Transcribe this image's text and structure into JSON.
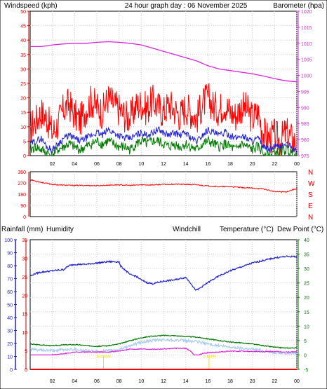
{
  "colors": {
    "wind": "#ff0000",
    "gust_avg": "#2222cc",
    "wind_low": "#007700",
    "baro": "#dd22dd",
    "title": "#ffdd00",
    "axis_red": "#cc0000",
    "grid": "#cccccc",
    "humidity": "#2222cc",
    "windchill": "#aaccee",
    "temp": "#007700",
    "dewpoint": "#dd22dd",
    "rain": "#ff0000",
    "sunline": "#ffdd00",
    "frame": "#000000"
  },
  "chart_data": [
    {
      "type": "line",
      "title": "24 hour graph day : 06 November 2025",
      "ylabel": "Windspeed (kph)",
      "y2label": "Barometer (hpa)",
      "ylim": [
        0,
        50
      ],
      "y2lim": [
        975,
        1020
      ],
      "yticks": [
        "0",
        "5",
        "10",
        "15",
        "20",
        "25",
        "30",
        "35",
        "40",
        "45",
        "50"
      ],
      "y2ticks": [
        "975",
        "980",
        "985",
        "990",
        "995",
        "1000",
        "1005",
        "1010",
        "1015",
        "1020"
      ],
      "xticks": [
        "02",
        "04",
        "06",
        "08",
        "10",
        "12",
        "14",
        "16",
        "18",
        "20",
        "22",
        "00"
      ],
      "series": [
        {
          "key": "wind",
          "x": [
            0,
            0.5,
            1,
            1.5,
            2,
            2.5,
            3,
            3.5,
            4,
            4.5,
            5,
            5.5,
            6,
            6.5,
            7,
            7.5,
            8,
            8.5,
            9,
            9.5,
            10,
            10.5,
            11,
            11.5,
            12,
            12.5,
            13,
            13.5,
            14,
            14.5,
            15,
            15.5,
            16,
            16.5,
            17,
            17.5,
            18,
            18.5,
            19,
            19.5,
            20,
            20.5,
            21,
            21.5,
            22,
            22.5,
            23,
            23.5,
            24
          ],
          "y": [
            10,
            12,
            15,
            13,
            8,
            11,
            16,
            18,
            14,
            12,
            16,
            19,
            17,
            15,
            20,
            18,
            16,
            14,
            13,
            17,
            18,
            16,
            19,
            17,
            15,
            18,
            16,
            14,
            17,
            15,
            13,
            18,
            20,
            17,
            16,
            18,
            15,
            14,
            17,
            16,
            13,
            15,
            8,
            6,
            7,
            5,
            8,
            6,
            4
          ]
        },
        {
          "key": "gust_avg",
          "x": [
            0,
            0.5,
            1,
            1.5,
            2,
            2.5,
            3,
            3.5,
            4,
            4.5,
            5,
            5.5,
            6,
            6.5,
            7,
            7.5,
            8,
            8.5,
            9,
            9.5,
            10,
            10.5,
            11,
            11.5,
            12,
            12.5,
            13,
            13.5,
            14,
            14.5,
            15,
            15.5,
            16,
            16.5,
            17,
            17.5,
            18,
            18.5,
            19,
            19.5,
            20,
            20.5,
            21,
            21.5,
            22,
            22.5,
            23,
            23.5,
            24
          ],
          "y": [
            4,
            5,
            6,
            3,
            2,
            4,
            6,
            7,
            6,
            5,
            6,
            7,
            8,
            7,
            9,
            8,
            7,
            6,
            6,
            7,
            8,
            7,
            8,
            9,
            8,
            7,
            8,
            7,
            8,
            6,
            5,
            7,
            9,
            8,
            7,
            8,
            7,
            6,
            7,
            6,
            5,
            6,
            3,
            2,
            3,
            3,
            4,
            3,
            1
          ]
        },
        {
          "key": "wind_low",
          "x": [
            0,
            0.5,
            1,
            1.5,
            2,
            2.5,
            3,
            3.5,
            4,
            4.5,
            5,
            5.5,
            6,
            6.5,
            7,
            7.5,
            8,
            8.5,
            9,
            9.5,
            10,
            10.5,
            11,
            11.5,
            12,
            12.5,
            13,
            13.5,
            14,
            14.5,
            15,
            15.5,
            16,
            16.5,
            17,
            17.5,
            18,
            18.5,
            19,
            19.5,
            20,
            20.5,
            21,
            21.5,
            22,
            22.5,
            23,
            23.5,
            24
          ],
          "y": [
            2,
            3,
            2,
            1,
            0,
            2,
            3,
            4,
            3,
            2,
            3,
            4,
            5,
            4,
            5,
            4,
            3,
            3,
            2,
            4,
            5,
            4,
            5,
            5,
            4,
            3,
            4,
            3,
            4,
            3,
            2,
            4,
            5,
            4,
            3,
            4,
            3,
            2,
            4,
            3,
            2,
            3,
            1,
            0,
            1,
            1,
            2,
            1,
            0
          ]
        },
        {
          "key": "baro",
          "axis": "y2",
          "x": [
            0,
            1,
            2,
            3,
            4,
            5,
            6,
            7,
            8,
            9,
            10,
            11,
            12,
            13,
            14,
            15,
            16,
            17,
            18,
            19,
            20,
            21,
            22,
            23,
            24
          ],
          "y": [
            1009,
            1009,
            1009.5,
            1009.8,
            1010,
            1010,
            1010.3,
            1010.5,
            1010.3,
            1010,
            1009.5,
            1008.5,
            1007.5,
            1006.5,
            1005.5,
            1004.5,
            1003,
            1002,
            1001.5,
            1001,
            1000.5,
            999.8,
            999,
            998.3,
            998
          ]
        }
      ]
    },
    {
      "type": "line",
      "ylabel_letters": [
        "N",
        "W",
        "S",
        "E",
        "N"
      ],
      "ylim": [
        0,
        360
      ],
      "yticks": [
        "0",
        "90",
        "180",
        "270",
        "360"
      ],
      "series": [
        {
          "key": "wind",
          "x": [
            0,
            1,
            2,
            3,
            4,
            5,
            6,
            7,
            8,
            9,
            10,
            11,
            12,
            13,
            14,
            15,
            16,
            17,
            18,
            19,
            20,
            21,
            22,
            23,
            24
          ],
          "y": [
            295,
            275,
            258,
            252,
            250,
            250,
            248,
            252,
            255,
            250,
            255,
            254,
            258,
            260,
            258,
            255,
            246,
            240,
            240,
            233,
            228,
            222,
            200,
            198,
            225
          ]
        }
      ]
    },
    {
      "type": "line",
      "labels": {
        "rain": "Rainfall (mm)",
        "humidity": "Humidity",
        "windchill": "Windchill",
        "temp": "Temperature (°C)",
        "dewpoint": "Dew Point (°C)"
      },
      "hum_lim": [
        0,
        100
      ],
      "rain_lim": [
        0,
        35
      ],
      "temp_lim": [
        -5,
        40
      ],
      "hum_ticks": [
        "0",
        "10",
        "20",
        "30",
        "40",
        "50",
        "60",
        "70",
        "80",
        "90",
        "100"
      ],
      "rain_ticks": [
        "0",
        "5",
        "10",
        "15",
        "20",
        "25",
        "30",
        "35"
      ],
      "temp_ticks": [
        "-5",
        "0",
        "5",
        "10",
        "15",
        "20",
        "25",
        "30",
        "35",
        "40"
      ],
      "xticks": [
        "02",
        "04",
        "06",
        "08",
        "10",
        "12",
        "14",
        "16",
        "18",
        "20",
        "22",
        "00"
      ],
      "sunrise_label": "Sunrise",
      "sunset_label": "Sunset",
      "sunrise_x": 6.6,
      "sunset_x": 16.1,
      "series": [
        {
          "key": "humidity",
          "x": [
            0,
            0.5,
            1,
            2,
            3,
            3.5,
            4,
            5,
            6,
            7,
            7.2,
            8,
            8.1,
            8.5,
            9,
            9.5,
            10,
            10.5,
            11,
            12,
            13,
            13.5,
            14,
            14.5,
            14.8,
            15,
            15.5,
            16,
            17,
            18,
            19,
            20,
            21,
            22,
            23,
            24
          ],
          "y": [
            72,
            74,
            75,
            76,
            77,
            80,
            81,
            81,
            82,
            83,
            83,
            83,
            80,
            77,
            73,
            72,
            69,
            67,
            66,
            68,
            69,
            70,
            71,
            66,
            62,
            61,
            64,
            67,
            72,
            76,
            79,
            82,
            84,
            86,
            87,
            87
          ]
        },
        {
          "key": "temp",
          "axis": "temp",
          "x": [
            0,
            1,
            2,
            3,
            4,
            5,
            6,
            7,
            8,
            9,
            10,
            11,
            12,
            13,
            14,
            15,
            16,
            17,
            18,
            19,
            20,
            21,
            22,
            23,
            24
          ],
          "y": [
            3.8,
            3.5,
            3.2,
            3.5,
            3.6,
            3.3,
            3.0,
            3.2,
            3.8,
            5.0,
            6.0,
            6.5,
            6.8,
            6.7,
            6.4,
            6.2,
            5.6,
            5.0,
            4.5,
            4.2,
            3.8,
            3.2,
            2.7,
            2.4,
            2.5
          ]
        },
        {
          "key": "windchill",
          "axis": "temp",
          "x": [
            0,
            1,
            2,
            3,
            4,
            5,
            6,
            7,
            8,
            9,
            10,
            11,
            12,
            13,
            14,
            15,
            16,
            17,
            18,
            19,
            20,
            21,
            22,
            23,
            24
          ],
          "y": [
            2.0,
            1.6,
            1.5,
            1.8,
            2.0,
            1.5,
            1.2,
            1.4,
            2.0,
            3.2,
            4.4,
            5.0,
            5.3,
            5.2,
            4.9,
            4.6,
            3.9,
            3.2,
            2.7,
            2.4,
            2.0,
            1.5,
            0.9,
            0.6,
            0.7
          ]
        },
        {
          "key": "dewpoint",
          "axis": "temp",
          "x": [
            0,
            1,
            2,
            3,
            4,
            5,
            6,
            7,
            8,
            9,
            10,
            11,
            12,
            13,
            14,
            14.5,
            14.8,
            15,
            15.5,
            16,
            17,
            18,
            19,
            20,
            21,
            22,
            23,
            24
          ],
          "y": [
            -0.5,
            -0.5,
            0,
            0.4,
            1.0,
            1.0,
            1.0,
            1.0,
            1.4,
            2.0,
            2.1,
            2.0,
            2.1,
            2.3,
            2.3,
            1.2,
            -0.5,
            -0.3,
            0.5,
            0.8,
            1.0,
            1.3,
            1.3,
            1.2,
            1.1,
            1.2,
            1.0,
            1.1
          ]
        },
        {
          "key": "rain",
          "axis": "rain",
          "x": [
            0,
            24
          ],
          "y": [
            0,
            0
          ]
        }
      ]
    }
  ]
}
